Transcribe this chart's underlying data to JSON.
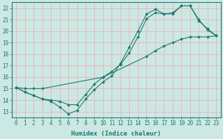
{
  "xlabel": "Humidex (Indice chaleur)",
  "background_color": "#cce8e4",
  "grid_color": "#e8b8b8",
  "line_color": "#1a7a6e",
  "xlim": [
    -0.5,
    23.5
  ],
  "ylim": [
    12.5,
    22.5
  ],
  "xticks": [
    0,
    1,
    2,
    3,
    4,
    5,
    6,
    7,
    8,
    9,
    10,
    11,
    12,
    13,
    14,
    15,
    16,
    17,
    18,
    19,
    20,
    21,
    22,
    23
  ],
  "yticks": [
    13,
    14,
    15,
    16,
    17,
    18,
    19,
    20,
    21,
    22
  ],
  "line1": {
    "x": [
      0,
      1,
      2,
      3,
      4,
      5,
      6,
      7,
      8,
      9,
      10,
      11,
      12,
      13,
      14,
      15,
      16,
      17,
      18,
      19,
      20,
      21,
      22,
      23
    ],
    "y": [
      15.1,
      14.7,
      14.4,
      14.1,
      13.9,
      13.4,
      12.8,
      13.1,
      14.1,
      14.9,
      15.6,
      16.1,
      17.2,
      18.6,
      20.0,
      21.5,
      21.9,
      21.5,
      21.6,
      22.2,
      22.2,
      20.9,
      20.2,
      19.6
    ]
  },
  "line2": {
    "x": [
      0,
      1,
      2,
      3,
      4,
      5,
      6,
      7,
      8,
      9,
      10,
      11,
      12,
      13,
      14,
      15,
      16,
      17,
      18,
      19,
      20,
      21,
      22,
      23
    ],
    "y": [
      15.1,
      14.7,
      14.4,
      14.1,
      14.0,
      13.9,
      13.6,
      13.6,
      14.5,
      15.4,
      16.0,
      16.5,
      17.1,
      18.1,
      19.5,
      21.1,
      21.6,
      21.5,
      21.5,
      22.2,
      22.2,
      21.0,
      20.1,
      19.6
    ]
  },
  "line3": {
    "x": [
      0,
      1,
      2,
      3,
      10,
      15,
      16,
      17,
      18,
      19,
      20,
      21,
      22,
      23
    ],
    "y": [
      15.1,
      15.0,
      15.0,
      15.0,
      16.0,
      17.8,
      18.3,
      18.7,
      19.0,
      19.3,
      19.5,
      19.5,
      19.5,
      19.6
    ]
  }
}
